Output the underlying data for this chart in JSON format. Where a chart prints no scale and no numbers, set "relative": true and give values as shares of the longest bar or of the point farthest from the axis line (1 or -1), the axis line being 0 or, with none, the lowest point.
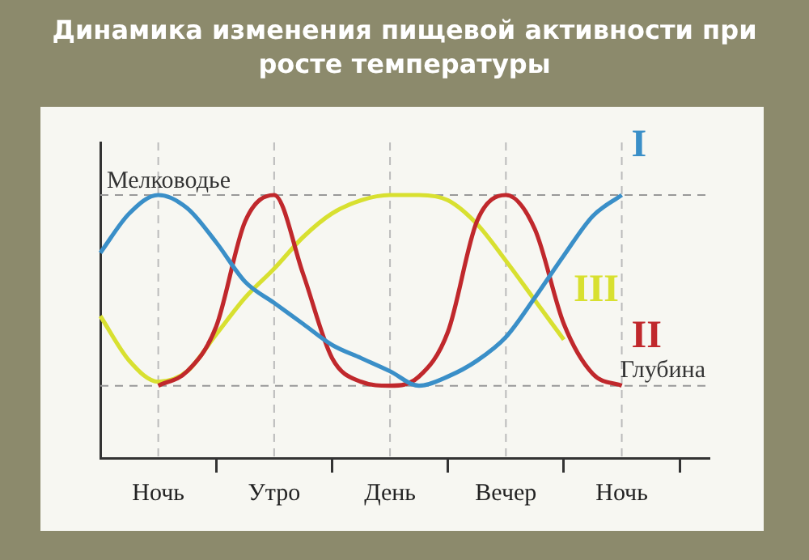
{
  "chart_data": {
    "type": "line",
    "title": "Динамика изменения пищевой активности при росте температуры",
    "relative": true,
    "categories": [
      null,
      null,
      "Ночь",
      null,
      null,
      null,
      "Утро",
      null,
      null,
      null,
      "День",
      null,
      null,
      null,
      "Вечер",
      null,
      null,
      null,
      "Ночь",
      null,
      null,
      null
    ],
    "tick_labels": "x",
    "grid": "x",
    "series": [
      {
        "name": "I",
        "color": "#3a8fc8",
        "values": [
          0.78,
          0.93,
          1,
          0.95,
          0.82,
          0.67,
          0.59,
          0.51,
          0.43,
          0.38,
          0.33,
          0.275,
          0.31,
          0.37,
          0.46,
          0.61,
          0.77,
          0.92,
          1,
          null,
          null,
          null
        ]
      },
      {
        "name": "II",
        "color": "#c0282c",
        "values": [
          null,
          null,
          0.275,
          0.33,
          0.5,
          0.9,
          1,
          0.7,
          0.38,
          0.29,
          0.275,
          0.31,
          0.48,
          0.9,
          1,
          0.87,
          0.51,
          0.32,
          0.275,
          null,
          null,
          null
        ]
      },
      {
        "name": "III",
        "color": "#d8e030",
        "values": [
          0.54,
          0.37,
          0.29,
          0.33,
          0.47,
          0.61,
          0.72,
          0.84,
          0.93,
          0.98,
          1,
          1,
          0.98,
          0.89,
          0.75,
          0.6,
          0.45,
          null,
          null,
          null,
          null,
          null
        ]
      }
    ],
    "ref_lines": [
      {
        "axis": "y",
        "value": 1,
        "label": "Мелководье",
        "color": "#999999",
        "line_style": "dashed"
      },
      {
        "axis": "y",
        "value": 0.275,
        "label": "Глубина",
        "color": "#999999",
        "line_style": "dashed"
      }
    ]
  }
}
